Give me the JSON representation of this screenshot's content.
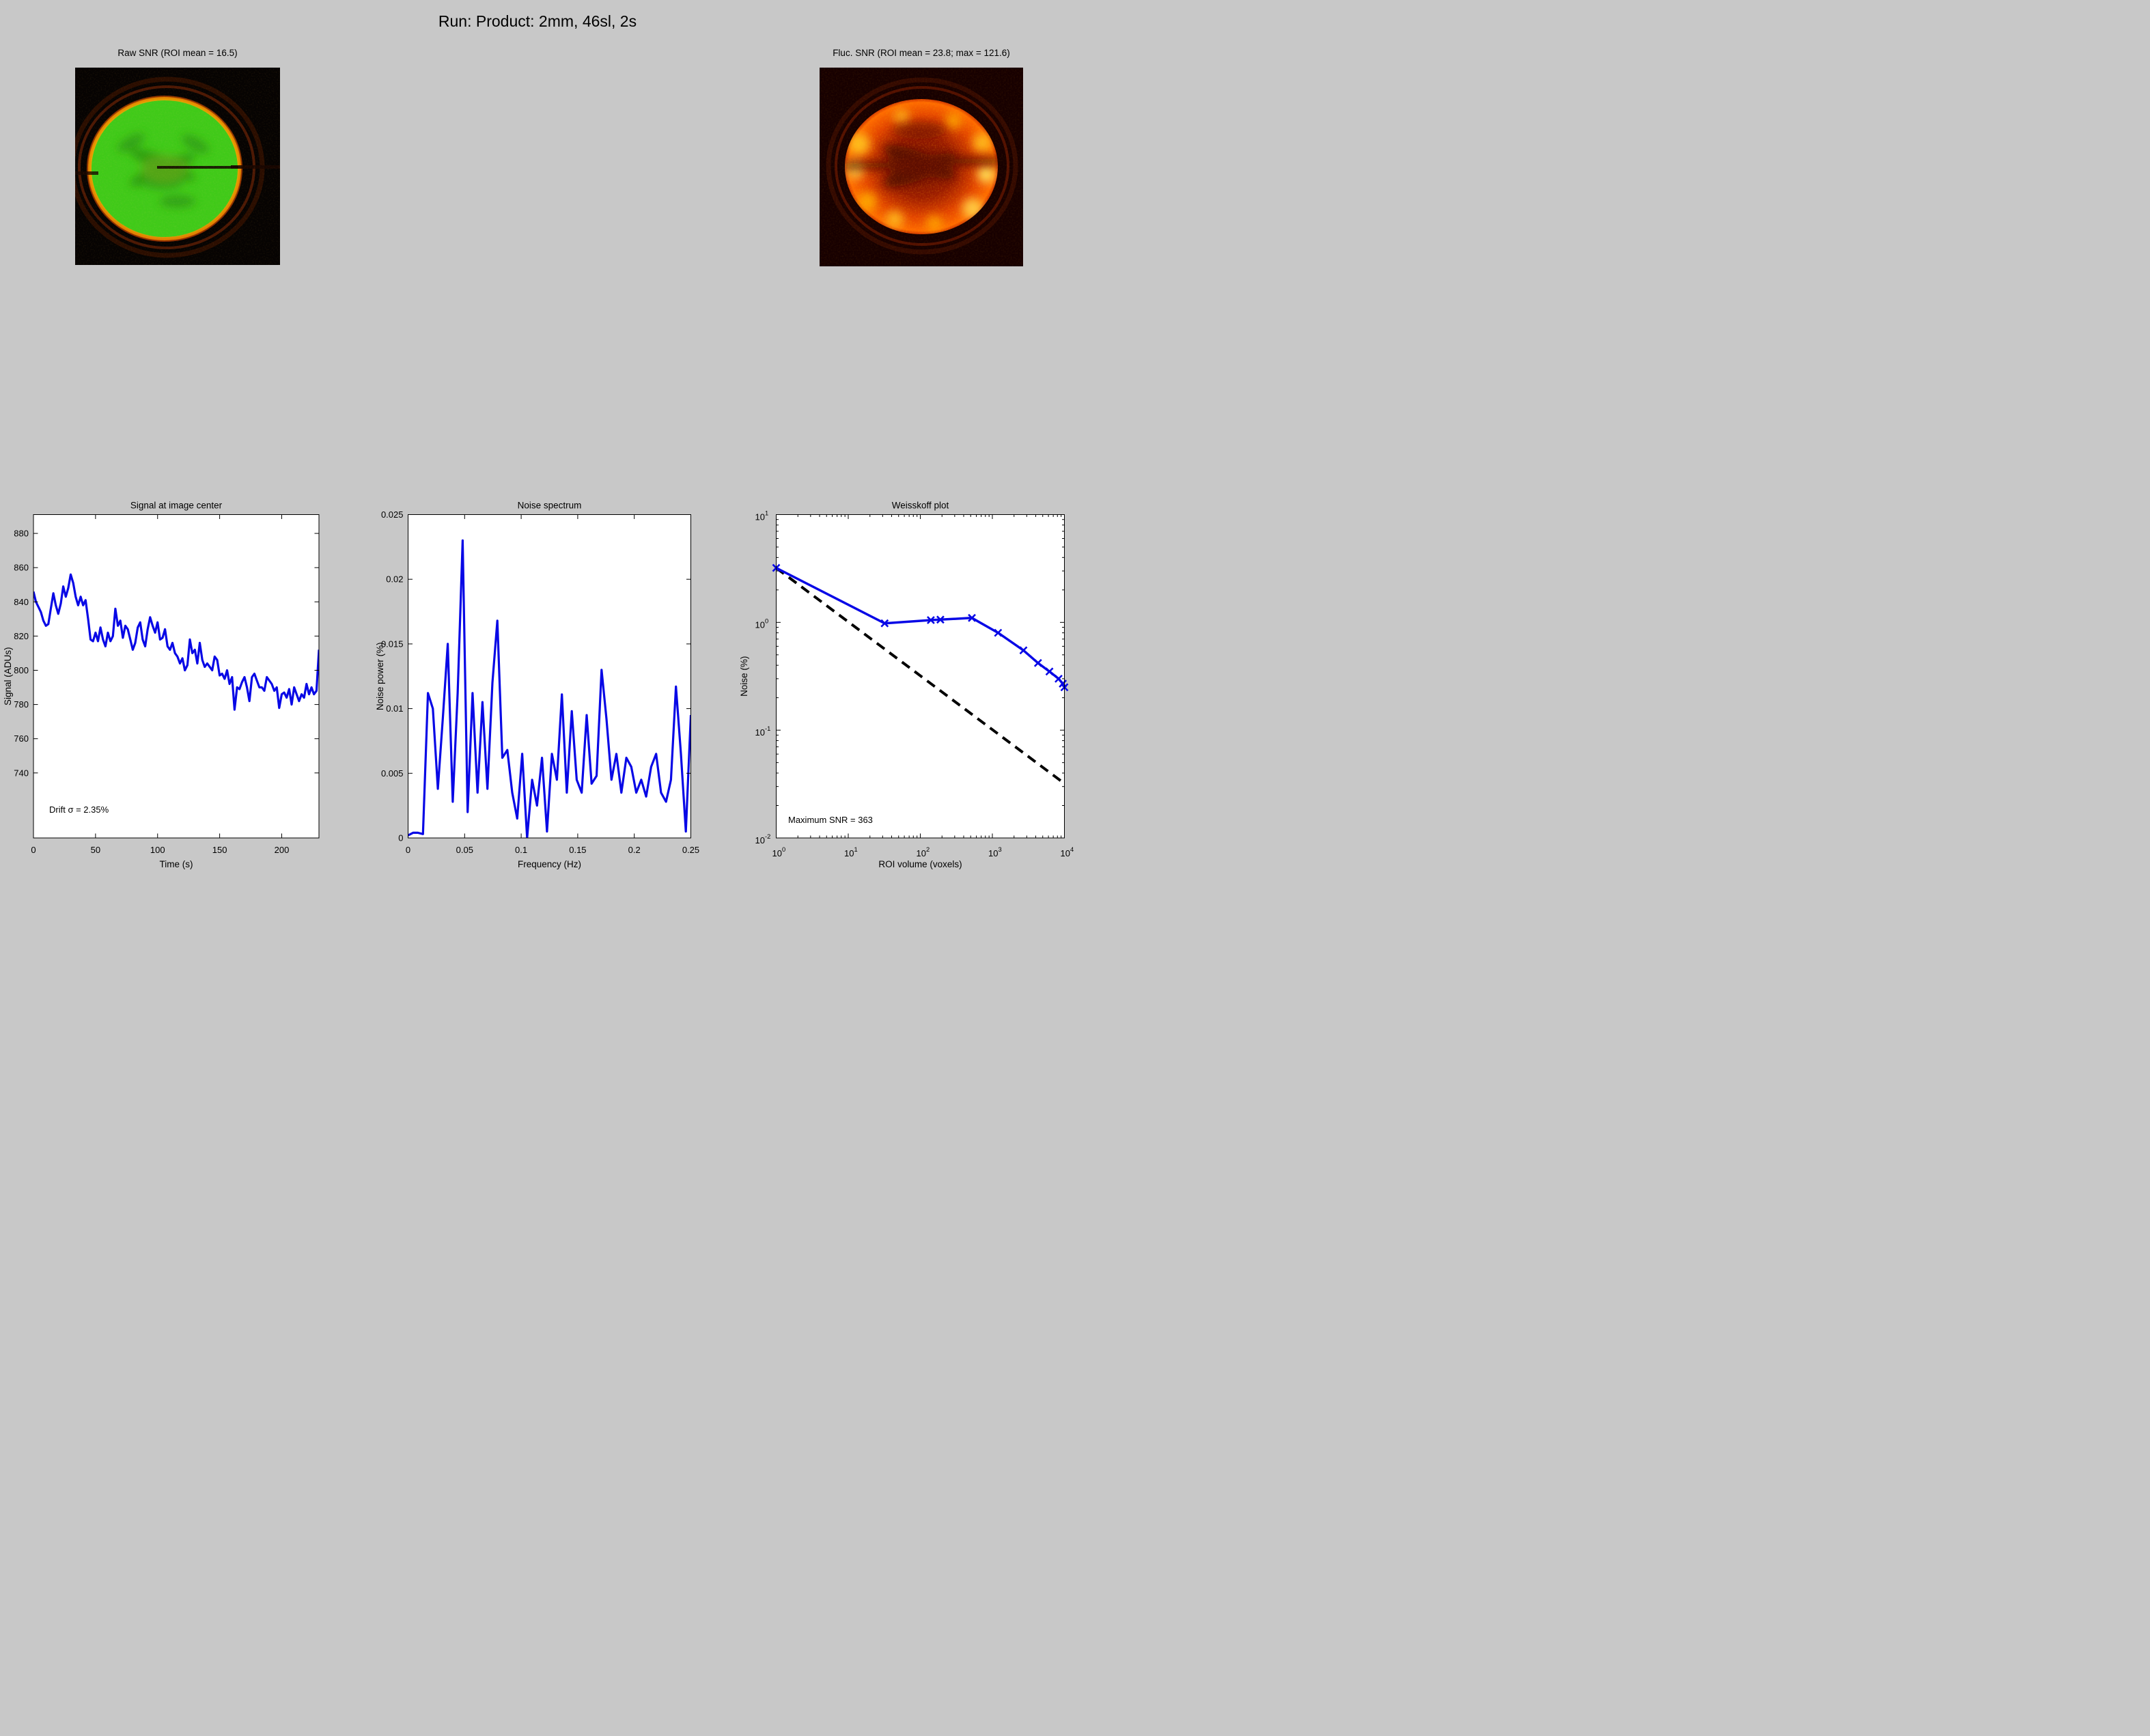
{
  "figure": {
    "title": "Run: Product: 2mm, 46sl, 2s"
  },
  "images": {
    "raw": {
      "title": "Raw SNR (ROI mean = 16.5)"
    },
    "fluc": {
      "title": "Fluc. SNR (ROI mean = 23.8; max = 121.6)"
    }
  },
  "colors": {
    "figure_bg": "#c8c8c8",
    "axes_bg": "#ffffff",
    "data_blue": "#0808e6",
    "dashed_black": "#000000",
    "raw_brain_green": "#3fca18",
    "raw_rim_orange": "#e07800",
    "fluc_brain_red": "#cc2a00",
    "fluc_hot_yellow": "#ffc420"
  },
  "chart_data": [
    {
      "type": "line",
      "title": "Signal at image center",
      "xlabel": "Time (s)",
      "ylabel": "Signal (ADUs)",
      "annotation": "Drift σ = 2.35%",
      "xlim": [
        0,
        230
      ],
      "ylim": [
        702,
        891
      ],
      "xticks": [
        0,
        50,
        100,
        150,
        200
      ],
      "xtick_labels": [
        "0",
        "50",
        "100",
        "150",
        "200"
      ],
      "yticks": [
        740,
        760,
        780,
        800,
        820,
        840,
        860,
        880
      ],
      "ytick_labels": [
        "740",
        "760",
        "780",
        "800",
        "820",
        "840",
        "860",
        "880"
      ],
      "grid": false,
      "series": [
        {
          "name": "center-voxel-signal",
          "color": "#0808e6",
          "width": 3.2,
          "x_start": 0,
          "x_step": 2,
          "values": [
            846,
            840,
            837,
            834,
            829,
            826,
            827,
            836,
            845,
            838,
            833,
            839,
            849,
            843,
            848,
            856,
            851,
            843,
            838,
            843,
            838,
            841,
            830,
            818,
            817,
            822,
            817,
            825,
            818,
            814,
            822,
            817,
            820,
            836,
            826,
            829,
            819,
            826,
            824,
            818,
            812,
            816,
            825,
            828,
            818,
            814,
            824,
            831,
            826,
            822,
            828,
            818,
            819,
            824,
            814,
            812,
            816,
            810,
            808,
            804,
            807,
            800,
            803,
            818,
            810,
            812,
            804,
            816,
            806,
            802,
            804,
            802,
            800,
            808,
            806,
            797,
            798,
            795,
            800,
            792,
            796,
            777,
            790,
            789,
            793,
            796,
            790,
            782,
            796,
            798,
            794,
            790,
            790,
            788,
            796,
            794,
            792,
            788,
            790,
            778,
            786,
            787,
            784,
            789,
            780,
            790,
            786,
            782,
            786,
            784,
            792,
            786,
            790,
            786,
            788,
            812
          ]
        }
      ]
    },
    {
      "type": "line",
      "title": "Noise spectrum",
      "xlabel": "Frequency (Hz)",
      "ylabel": "Noise power (%)",
      "annotation": "",
      "xlim": [
        0,
        0.25
      ],
      "ylim": [
        0,
        0.025
      ],
      "xticks": [
        0,
        0.05,
        0.1,
        0.15,
        0.2,
        0.25
      ],
      "xtick_labels": [
        "0",
        "0.05",
        "0.1",
        "0.15",
        "0.2",
        "0.25"
      ],
      "yticks": [
        0,
        0.005,
        0.01,
        0.015,
        0.02,
        0.025
      ],
      "ytick_labels": [
        "0",
        "0.005",
        "0.01",
        "0.015",
        "0.02",
        "0.025"
      ],
      "grid": false,
      "series": [
        {
          "name": "noise-power-spectrum",
          "color": "#0808e6",
          "width": 3.2,
          "x_start": 0,
          "x_step": 0.0043859,
          "values": [
            0.0002,
            0.0004,
            0.0004,
            0.0003,
            0.0112,
            0.01,
            0.0038,
            0.0092,
            0.015,
            0.0028,
            0.0112,
            0.023,
            0.002,
            0.0112,
            0.0035,
            0.0105,
            0.0038,
            0.012,
            0.0168,
            0.0062,
            0.0068,
            0.0035,
            0.0015,
            0.0065,
            0.0,
            0.0045,
            0.0025,
            0.0062,
            0.0005,
            0.0065,
            0.0045,
            0.0111,
            0.0035,
            0.0098,
            0.0045,
            0.0035,
            0.0095,
            0.0042,
            0.0048,
            0.013,
            0.0092,
            0.0045,
            0.0065,
            0.0035,
            0.0062,
            0.0055,
            0.0035,
            0.0045,
            0.0032,
            0.0055,
            0.0065,
            0.0035,
            0.0028,
            0.0045,
            0.0117,
            0.0065,
            0.0005,
            0.0095
          ]
        }
      ]
    },
    {
      "type": "line",
      "title": "Weisskoff plot",
      "xlabel": "ROI volume (voxels)",
      "ylabel": "Noise (%)",
      "annotation": "Maximum SNR = 363",
      "xscale": "log",
      "yscale": "log",
      "xlim_exp": [
        0,
        4
      ],
      "ylim_exp": [
        -2,
        1
      ],
      "xtick_exponents": [
        0,
        1,
        2,
        3,
        4
      ],
      "ytick_exponents": [
        -2,
        -1,
        0,
        1
      ],
      "grid": false,
      "series": [
        {
          "name": "theoretical-1-over-sqrtN",
          "color": "#000000",
          "width": 4,
          "dash": "14,9",
          "x": [
            1,
            10000
          ],
          "y": [
            3.2,
            0.032
          ]
        },
        {
          "name": "measured-roi-noise",
          "color": "#0808e6",
          "width": 3.5,
          "marker": "x",
          "x": [
            1,
            32,
            140,
            190,
            520,
            1200,
            2700,
            4300,
            6200,
            8300,
            9500,
            10000
          ],
          "y": [
            3.2,
            0.98,
            1.05,
            1.06,
            1.1,
            0.8,
            0.55,
            0.42,
            0.35,
            0.3,
            0.27,
            0.25
          ]
        }
      ]
    }
  ]
}
